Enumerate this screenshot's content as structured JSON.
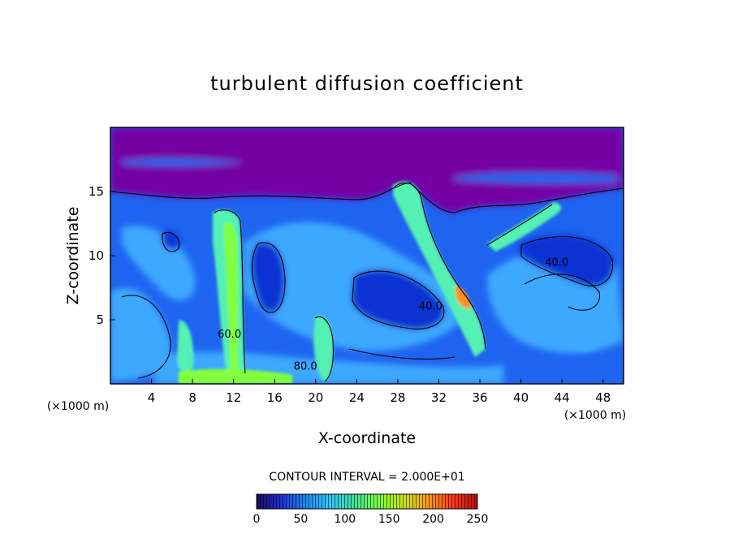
{
  "chart_data": {
    "type": "heatmap",
    "title": "turbulent diffusion coefficient",
    "xlabel": "X-coordinate",
    "ylabel": "Z-coordinate",
    "x_unit": "(×1000 m)",
    "y_unit": "(×1000 m)",
    "xlim": [
      0,
      50
    ],
    "ylim": [
      0,
      20
    ],
    "x_ticks": [
      "4",
      "8",
      "12",
      "16",
      "20",
      "24",
      "28",
      "32",
      "36",
      "40",
      "44",
      "48"
    ],
    "x_tick_values": [
      4,
      8,
      12,
      16,
      20,
      24,
      28,
      32,
      36,
      40,
      44,
      48
    ],
    "y_ticks": [
      "5",
      "10",
      "15"
    ],
    "y_tick_values": [
      5,
      10,
      15
    ],
    "contour_interval_text": "CONTOUR INTERVAL = 2.000E+01",
    "contour_interval": 20,
    "contour_labels": [
      {
        "text": "40.0",
        "x": 43.5,
        "z": 9.2
      },
      {
        "text": "40.0",
        "x": 31.2,
        "z": 5.8
      },
      {
        "text": "60.0",
        "x": 11.6,
        "z": 3.6
      },
      {
        "text": "80.0",
        "x": 19.0,
        "z": 1.1
      }
    ],
    "colorbar": {
      "min": 0,
      "max": 250,
      "ticks": [
        "0",
        "50",
        "100",
        "150",
        "200",
        "250"
      ],
      "tick_values": [
        0,
        50,
        100,
        150,
        200,
        250
      ],
      "colors": [
        "#1a0a5c",
        "#1f2fd6",
        "#1a8cf0",
        "#30c8ff",
        "#3de39a",
        "#7cff3a",
        "#c8e61a",
        "#ff9a1a",
        "#ff3a1a",
        "#b01010"
      ]
    },
    "background_color": "#7400a4",
    "field_colors": {
      "sky_low_value": "#7400a4",
      "base_flow": "#1e64f0",
      "core_low": "#0f32d2",
      "moderate": "#3ca8ff",
      "high": "#55f0b4",
      "very_high": "#82ff3c",
      "peak": "#ff9020"
    }
  }
}
